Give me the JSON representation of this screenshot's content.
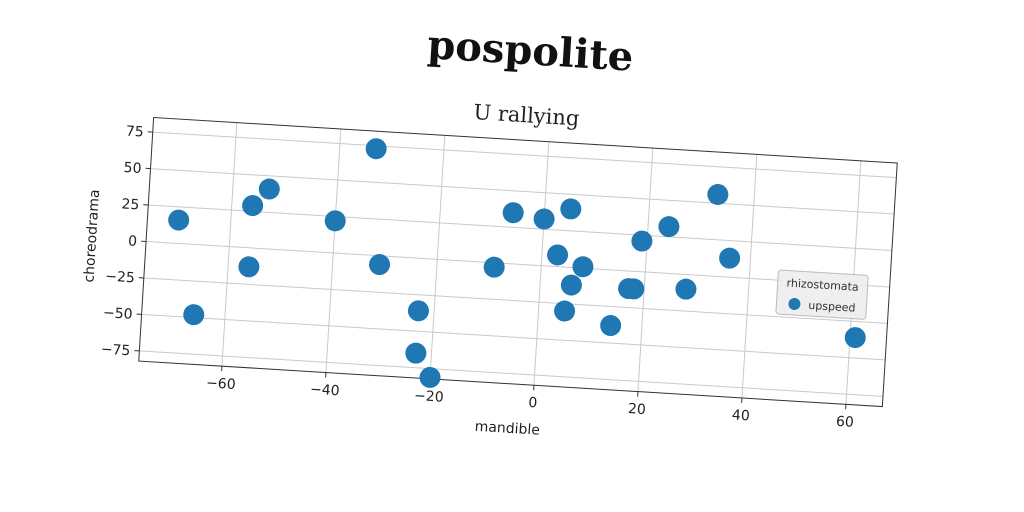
{
  "chart_data": {
    "type": "scatter",
    "title": "pospolite",
    "subtitle": "U rallying",
    "xlabel": "mandible",
    "ylabel": "choreodrama",
    "xlim": [
      -76,
      67
    ],
    "ylim": [
      -82,
      85
    ],
    "xticks": [
      -60,
      -40,
      -20,
      0,
      20,
      40,
      60
    ],
    "yticks": [
      -75,
      -50,
      -25,
      0,
      25,
      50,
      75
    ],
    "grid": true,
    "legend": {
      "title": "rhizostomata",
      "placement": "center-right"
    },
    "series": [
      {
        "name": "upspeed",
        "color": "#1f77b4",
        "points": [
          {
            "x": -33,
            "y": 73
          },
          {
            "x": -53,
            "y": 41
          },
          {
            "x": -56,
            "y": 29
          },
          {
            "x": -70,
            "y": 16
          },
          {
            "x": -40,
            "y": 22
          },
          {
            "x": -31,
            "y": -6
          },
          {
            "x": -56,
            "y": -13
          },
          {
            "x": -66,
            "y": -48
          },
          {
            "x": -23,
            "y": -36
          },
          {
            "x": -23,
            "y": -65
          },
          {
            "x": -20,
            "y": -81
          },
          {
            "x": -9,
            "y": -3
          },
          {
            "x": -6,
            "y": 35
          },
          {
            "x": 0,
            "y": 32
          },
          {
            "x": 5,
            "y": 40
          },
          {
            "x": 3,
            "y": 8
          },
          {
            "x": 8,
            "y": 1
          },
          {
            "x": 6,
            "y": -12
          },
          {
            "x": 5,
            "y": -30
          },
          {
            "x": 14,
            "y": -38
          },
          {
            "x": 17,
            "y": -12
          },
          {
            "x": 18,
            "y": -12
          },
          {
            "x": 19,
            "y": 21
          },
          {
            "x": 24,
            "y": 32
          },
          {
            "x": 28,
            "y": -10
          },
          {
            "x": 33,
            "y": 56
          },
          {
            "x": 36,
            "y": 13
          },
          {
            "x": 61,
            "y": -36
          }
        ]
      }
    ]
  }
}
